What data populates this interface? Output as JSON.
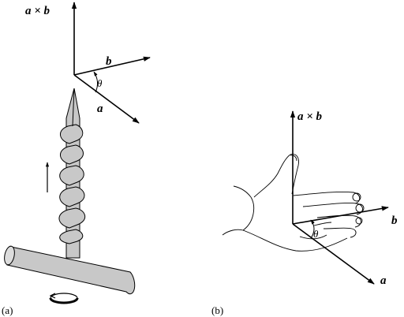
{
  "panel_a": {
    "caption": "(a)",
    "labels": {
      "axb": "a × b",
      "b": "b",
      "theta": "θ",
      "a": "a"
    }
  },
  "panel_b": {
    "caption": "(b)",
    "labels": {
      "axb": "a × b",
      "b": "b",
      "theta": "θ",
      "a": "a"
    }
  }
}
